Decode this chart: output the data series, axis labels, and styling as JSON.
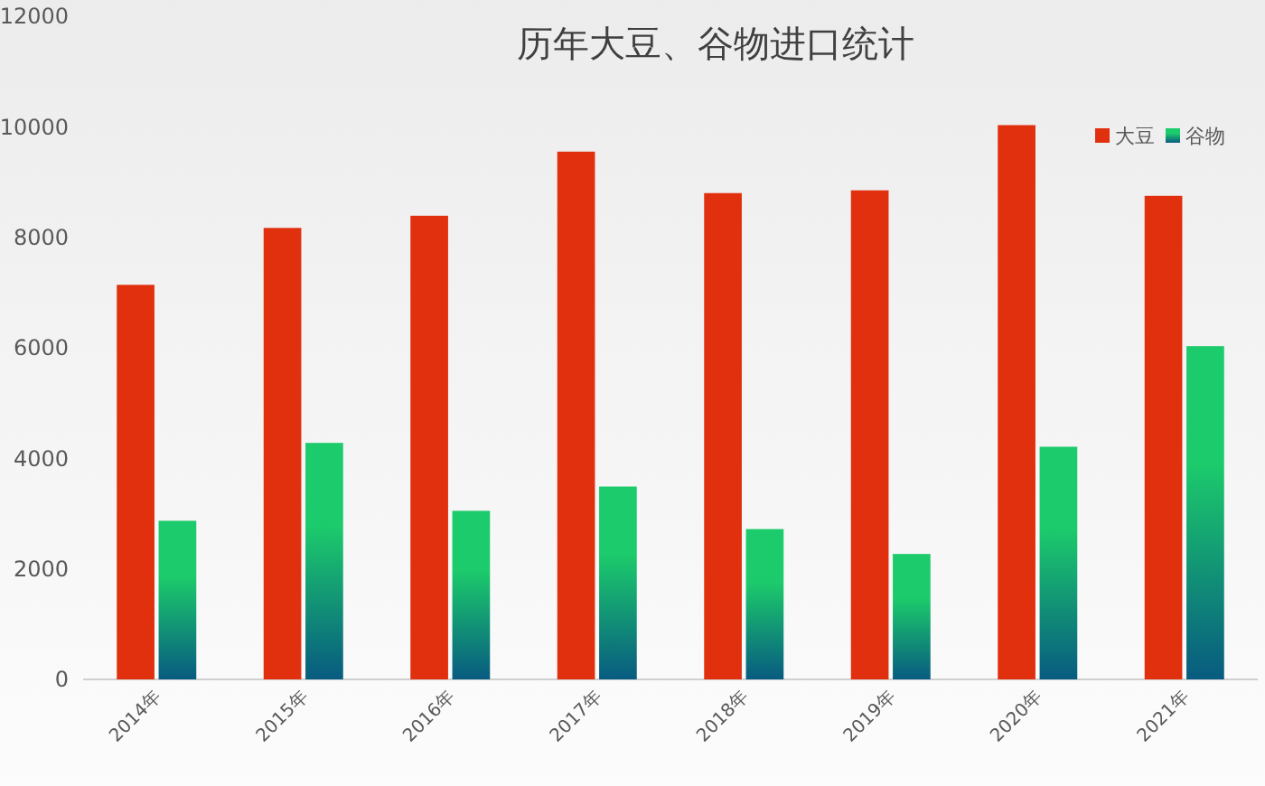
{
  "chart_data": {
    "type": "bar",
    "title": "历年大豆、谷物进口统计",
    "categories": [
      "2014年",
      "2015年",
      "2016年",
      "2017年",
      "2018年",
      "2019年",
      "2020年",
      "2021年"
    ],
    "series": [
      {
        "name": "大豆",
        "color": "#e0300e",
        "values": [
          7140,
          8170,
          8390,
          9550,
          8800,
          8850,
          10030,
          8750
        ]
      },
      {
        "name": "谷物",
        "color": "#1ccb6b",
        "values": [
          2870,
          4280,
          3050,
          3490,
          2720,
          2270,
          4210,
          6030
        ]
      }
    ],
    "ylim": [
      0,
      12000
    ],
    "yticks": [
      0,
      2000,
      4000,
      6000,
      8000,
      10000,
      12000
    ],
    "legend": "top right"
  }
}
